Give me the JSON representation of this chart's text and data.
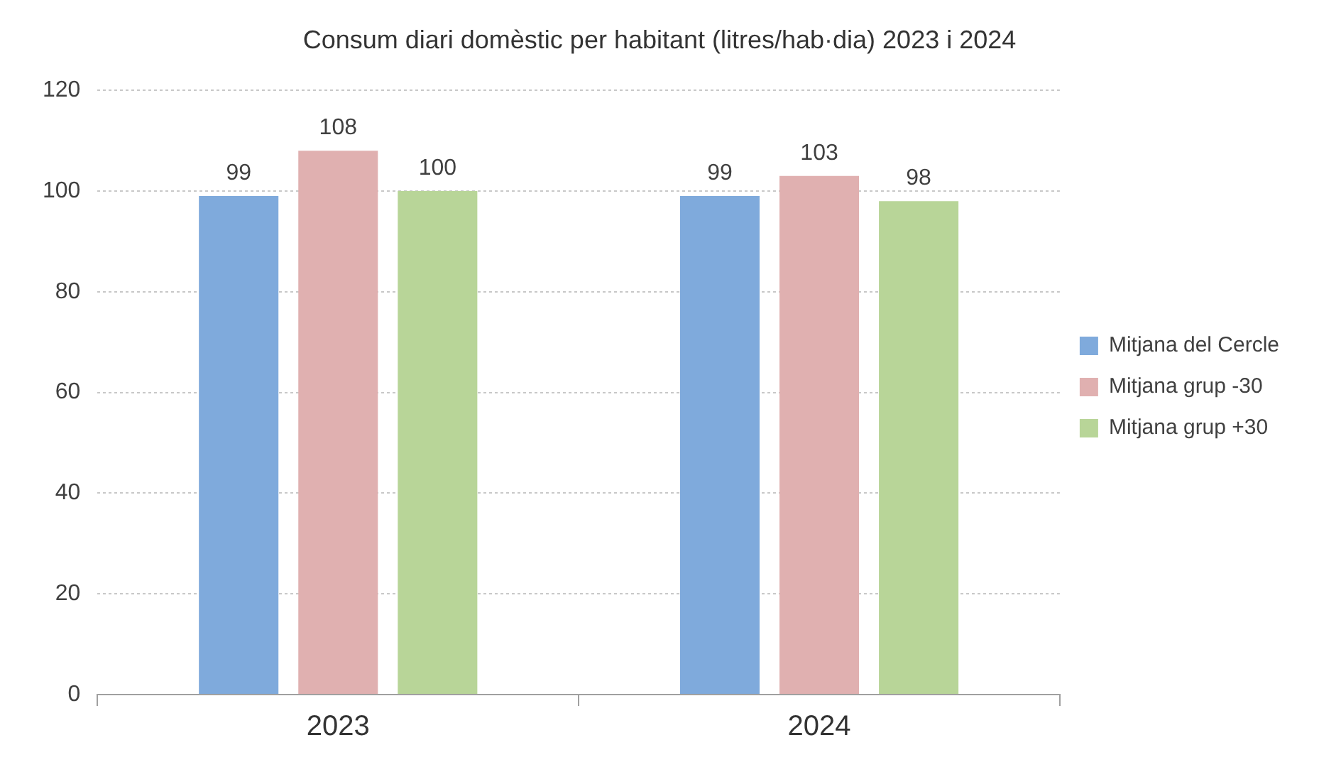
{
  "chart_data": {
    "type": "bar",
    "title": "Consum diari domèstic per habitant (litres/hab·dia) 2023 i 2024",
    "categories": [
      "2023",
      "2024"
    ],
    "series": [
      {
        "name": "Mitjana del Cercle",
        "color": "#7faadc",
        "values": [
          99,
          99
        ]
      },
      {
        "name": "Mitjana grup -30",
        "color": "#e0b0b0",
        "values": [
          108,
          103
        ]
      },
      {
        "name": "Mitjana grup +30",
        "color": "#b8d598",
        "values": [
          100,
          98
        ]
      }
    ],
    "ylim": [
      0,
      120
    ],
    "yticks": [
      0,
      20,
      40,
      60,
      80,
      100,
      120
    ],
    "grid": "y",
    "legend": "right",
    "data_labels": true
  }
}
